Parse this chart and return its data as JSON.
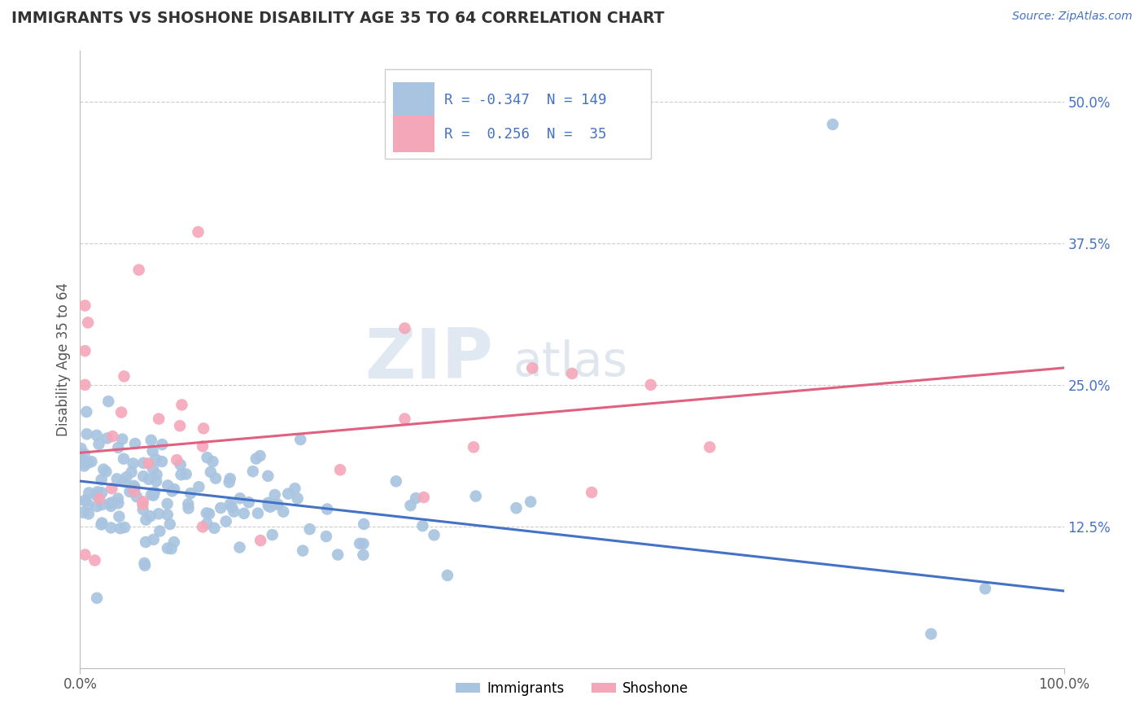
{
  "title": "IMMIGRANTS VS SHOSHONE DISABILITY AGE 35 TO 64 CORRELATION CHART",
  "source_text": "Source: ZipAtlas.com",
  "ylabel": "Disability Age 35 to 64",
  "xlim": [
    0.0,
    1.0
  ],
  "ylim": [
    0.0,
    0.545
  ],
  "xtick_positions": [
    0.0,
    1.0
  ],
  "xtick_labels": [
    "0.0%",
    "100.0%"
  ],
  "ytick_values": [
    0.125,
    0.25,
    0.375,
    0.5
  ],
  "ytick_labels": [
    "12.5%",
    "25.0%",
    "37.5%",
    "50.0%"
  ],
  "legend_r_immigrants": "-0.347",
  "legend_n_immigrants": "149",
  "legend_r_shoshone": "0.256",
  "legend_n_shoshone": "35",
  "immigrants_color": "#a8c4e0",
  "shoshone_color": "#f4a7b9",
  "immigrants_line_color": "#4472c4",
  "shoshone_line_color": "#e06080",
  "imm_line_y0": 0.165,
  "imm_line_y1": 0.068,
  "sho_line_y0": 0.19,
  "sho_line_y1": 0.265,
  "watermark_zip": "ZIP",
  "watermark_atlas": "atlas",
  "background_color": "#ffffff",
  "grid_color": "#cccccc",
  "legend_text_color": "#4472c4",
  "title_color": "#333333",
  "source_color": "#4472c4",
  "ylabel_color": "#555555"
}
